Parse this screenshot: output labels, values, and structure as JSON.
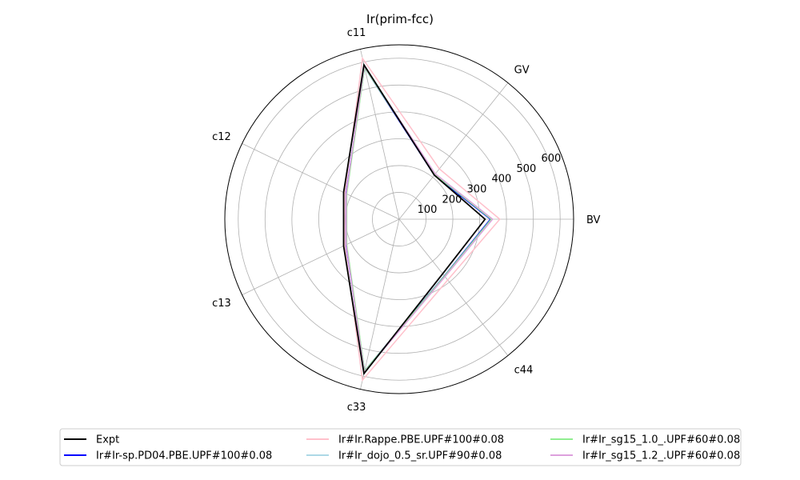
{
  "chart_data": {
    "type": "radar",
    "title": "Ir(prim-fcc)",
    "axes": [
      "BV",
      "GV",
      "c11",
      "c12",
      "c13",
      "c33",
      "c44"
    ],
    "rlim": [
      0,
      650
    ],
    "rticks": [
      100,
      200,
      300,
      400,
      500,
      600
    ],
    "grid": true,
    "legend_placement": "bottom-center",
    "series": [
      {
        "name": "Expt",
        "color": "#000000",
        "values": [
          320,
          210,
          590,
          230,
          230,
          590,
          260
        ]
      },
      {
        "name": "Ir#Ir-sp.PD04.PBE.UPF#100#0.08",
        "color": "#0000ff",
        "values": [
          340,
          210,
          580,
          220,
          220,
          580,
          270
        ]
      },
      {
        "name": "Ir#Ir.Rappe.PBE.UPF#100#0.08",
        "color": "#ffc0cb",
        "values": [
          375,
          240,
          615,
          225,
          225,
          615,
          290
        ]
      },
      {
        "name": "Ir#Ir_dojo_0.5_sr.UPF#90#0.08",
        "color": "#add8e6",
        "values": [
          345,
          215,
          582,
          218,
          218,
          582,
          272
        ]
      },
      {
        "name": "Ir#Ir_sg15_1.0_.UPF#60#0.08",
        "color": "#90ee90",
        "values": [
          343,
          213,
          580,
          217,
          217,
          580,
          271
        ]
      },
      {
        "name": "Ir#Ir_sg15_1.2_.UPF#60#0.08",
        "color": "#dda0dd",
        "values": [
          348,
          216,
          585,
          219,
          219,
          585,
          274
        ]
      }
    ]
  }
}
